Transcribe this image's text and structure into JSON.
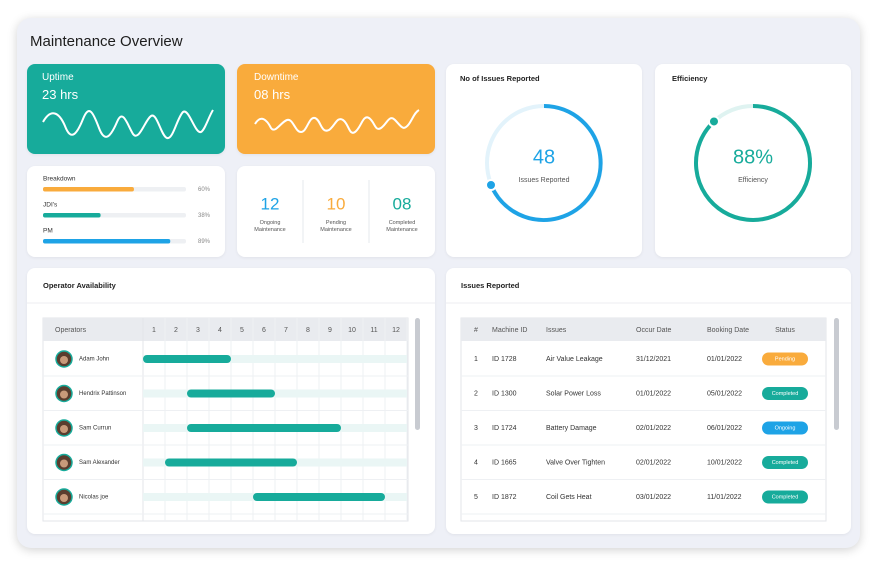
{
  "header": {
    "title": "Maintenance Overview"
  },
  "uptime": {
    "label": "Uptime",
    "value": "23 hrs",
    "color": "#17ab9b"
  },
  "downtime": {
    "label": "Downtime",
    "value": "08 hrs",
    "color": "#f9ab3c"
  },
  "progress": [
    {
      "label": "Breakdown",
      "percent": 60,
      "percent_label": "60%",
      "color": "#f9ab3c"
    },
    {
      "label": "JDI's",
      "percent": 38,
      "percent_label": "38%",
      "color": "#17ab9b"
    },
    {
      "label": "PM",
      "percent": 89,
      "percent_label": "89%",
      "color": "#1ea3e6"
    }
  ],
  "maintenance": [
    {
      "count": "12",
      "label": "Ongoing Maintenance",
      "color": "#1ea3e6"
    },
    {
      "count": "10",
      "label": "Pending Maintenance",
      "color": "#f9ab3c"
    },
    {
      "count": "08",
      "label": "Completed Maintenance",
      "color": "#17ab9b"
    }
  ],
  "issues_reported": {
    "title": "No of Issues Reported",
    "value": 48,
    "label": "Issues Reported",
    "color": "#1ea3e6"
  },
  "efficiency": {
    "title": "Efficiency",
    "percent": 88,
    "percent_label": "88%",
    "label": "Efficiency",
    "color": "#17ab9b"
  },
  "operators": {
    "title": "Operator Availability",
    "column_header": "Operators",
    "hours": [
      1,
      2,
      3,
      4,
      5,
      6,
      7,
      8,
      9,
      10,
      11,
      12
    ],
    "bar_color": "#17ab9b",
    "rows": [
      {
        "name": "Adam John",
        "start": 1,
        "end": 5
      },
      {
        "name": "Hendrix Pattinson",
        "start": 3,
        "end": 7
      },
      {
        "name": "Sam Currun",
        "start": 3,
        "end": 10
      },
      {
        "name": "Sam Alexander",
        "start": 2,
        "end": 8
      },
      {
        "name": "Nicolas joe",
        "start": 6,
        "end": 12
      }
    ]
  },
  "issues_table": {
    "title": "Issues Reported",
    "columns": [
      "#",
      "Machine ID",
      "Issues",
      "Occur Date",
      "Booking Date",
      "Status"
    ],
    "rows": [
      {
        "no": 1,
        "machine_id": "ID 1728",
        "issue": "Air Value Leakage",
        "occur_date": "31/12/2021",
        "booking_date": "01/01/2022",
        "status": "Pending",
        "status_color": "#f9ab3c"
      },
      {
        "no": 2,
        "machine_id": "ID 1300",
        "issue": "Solar Power Loss",
        "occur_date": "01/01/2022",
        "booking_date": "05/01/2022",
        "status": "Completed",
        "status_color": "#17ab9b"
      },
      {
        "no": 3,
        "machine_id": "ID 1724",
        "issue": "Battery Damage",
        "occur_date": "02/01/2022",
        "booking_date": "06/01/2022",
        "status": "Ongoing",
        "status_color": "#1ea3e6"
      },
      {
        "no": 4,
        "machine_id": "ID 1665",
        "issue": "Valve Over Tighten",
        "occur_date": "02/01/2022",
        "booking_date": "10/01/2022",
        "status": "Completed",
        "status_color": "#17ab9b"
      },
      {
        "no": 5,
        "machine_id": "ID 1872",
        "issue": "Coil Gets Heat",
        "occur_date": "03/01/2022",
        "booking_date": "11/01/2022",
        "status": "Completed",
        "status_color": "#17ab9b"
      }
    ]
  }
}
